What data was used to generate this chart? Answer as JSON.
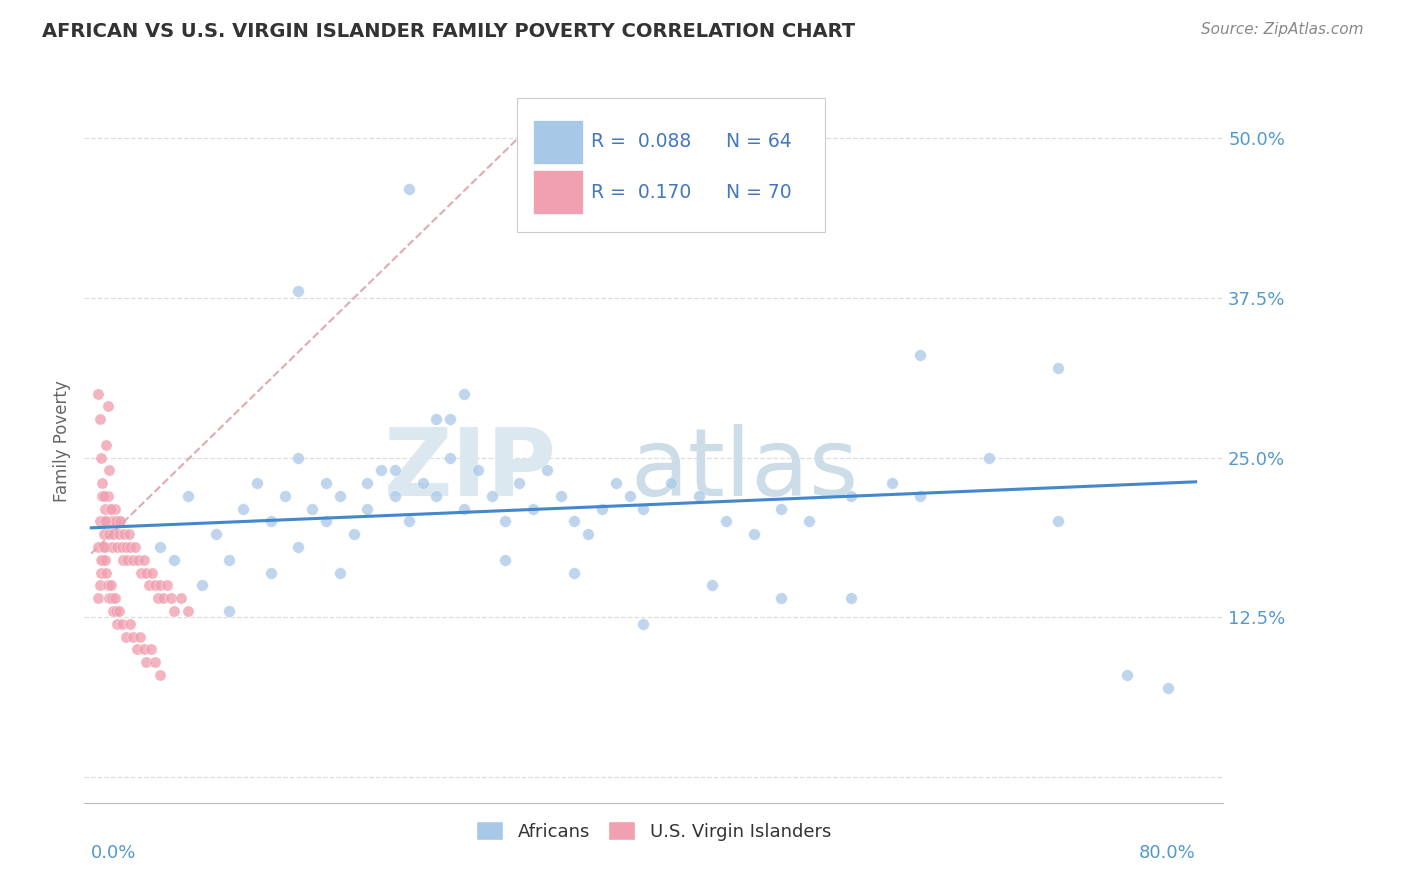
{
  "title": "AFRICAN VS U.S. VIRGIN ISLANDER FAMILY POVERTY CORRELATION CHART",
  "source": "Source: ZipAtlas.com",
  "ylabel": "Family Poverty",
  "yticks": [
    0.0,
    0.125,
    0.25,
    0.375,
    0.5
  ],
  "ytick_labels": [
    "",
    "12.5%",
    "25.0%",
    "37.5%",
    "50.0%"
  ],
  "xlim": [
    -0.005,
    0.82
  ],
  "ylim": [
    -0.02,
    0.545
  ],
  "color_blue": "#a8c8e8",
  "color_pink": "#f0a0b0",
  "color_trend_blue": "#4488cc",
  "color_trend_dashed": "#e8b0b8",
  "title_color": "#333333",
  "source_color": "#888888",
  "tick_color": "#5599cc",
  "axis_label_color": "#666666",
  "grid_color": "#dddddd",
  "legend_text_color": "#4477bb",
  "watermark_zip_color": "#d0dce8",
  "watermark_atlas_color": "#c8d8e0",
  "africans_x": [
    0.02,
    0.05,
    0.07,
    0.09,
    0.1,
    0.11,
    0.12,
    0.13,
    0.14,
    0.15,
    0.16,
    0.17,
    0.17,
    0.18,
    0.19,
    0.2,
    0.2,
    0.21,
    0.22,
    0.23,
    0.24,
    0.25,
    0.26,
    0.27,
    0.28,
    0.29,
    0.3,
    0.31,
    0.32,
    0.33,
    0.34,
    0.35,
    0.36,
    0.37,
    0.38,
    0.39,
    0.4,
    0.42,
    0.44,
    0.46,
    0.48,
    0.5,
    0.52,
    0.55,
    0.58,
    0.6,
    0.65,
    0.7,
    0.75,
    0.78,
    0.06,
    0.08,
    0.1,
    0.13,
    0.15,
    0.18,
    0.22,
    0.25,
    0.3,
    0.35,
    0.4,
    0.45,
    0.5,
    0.55
  ],
  "africans_y": [
    0.2,
    0.18,
    0.22,
    0.19,
    0.17,
    0.21,
    0.23,
    0.2,
    0.22,
    0.25,
    0.21,
    0.23,
    0.2,
    0.22,
    0.19,
    0.23,
    0.21,
    0.24,
    0.22,
    0.2,
    0.23,
    0.22,
    0.25,
    0.21,
    0.24,
    0.22,
    0.2,
    0.23,
    0.21,
    0.24,
    0.22,
    0.2,
    0.19,
    0.21,
    0.23,
    0.22,
    0.21,
    0.23,
    0.22,
    0.2,
    0.19,
    0.21,
    0.2,
    0.22,
    0.23,
    0.22,
    0.25,
    0.2,
    0.08,
    0.07,
    0.17,
    0.15,
    0.13,
    0.16,
    0.18,
    0.16,
    0.24,
    0.28,
    0.17,
    0.16,
    0.12,
    0.15,
    0.14,
    0.14
  ],
  "africans_y_outliers": [
    0.46,
    0.38,
    0.33,
    0.32,
    0.3,
    0.28
  ],
  "africans_x_outliers": [
    0.23,
    0.15,
    0.6,
    0.7,
    0.27,
    0.26
  ],
  "virgin_x": [
    0.005,
    0.006,
    0.007,
    0.008,
    0.009,
    0.01,
    0.01,
    0.011,
    0.012,
    0.013,
    0.014,
    0.015,
    0.015,
    0.016,
    0.017,
    0.018,
    0.019,
    0.02,
    0.021,
    0.022,
    0.023,
    0.024,
    0.025,
    0.026,
    0.027,
    0.028,
    0.03,
    0.032,
    0.034,
    0.036,
    0.038,
    0.04,
    0.042,
    0.044,
    0.046,
    0.048,
    0.05,
    0.052,
    0.055,
    0.058,
    0.06,
    0.065,
    0.07,
    0.005,
    0.006,
    0.007,
    0.008,
    0.009,
    0.01,
    0.011,
    0.012,
    0.013,
    0.014,
    0.015,
    0.016,
    0.017,
    0.018,
    0.019,
    0.02,
    0.022,
    0.025,
    0.028,
    0.03,
    0.033,
    0.035,
    0.038,
    0.04,
    0.043,
    0.046,
    0.05
  ],
  "virgin_y": [
    0.18,
    0.2,
    0.17,
    0.22,
    0.19,
    0.21,
    0.18,
    0.2,
    0.22,
    0.19,
    0.21,
    0.2,
    0.18,
    0.19,
    0.21,
    0.2,
    0.18,
    0.19,
    0.2,
    0.18,
    0.17,
    0.19,
    0.18,
    0.17,
    0.19,
    0.18,
    0.17,
    0.18,
    0.17,
    0.16,
    0.17,
    0.16,
    0.15,
    0.16,
    0.15,
    0.14,
    0.15,
    0.14,
    0.15,
    0.14,
    0.13,
    0.14,
    0.13,
    0.14,
    0.15,
    0.16,
    0.17,
    0.18,
    0.17,
    0.16,
    0.15,
    0.14,
    0.15,
    0.14,
    0.13,
    0.14,
    0.13,
    0.12,
    0.13,
    0.12,
    0.11,
    0.12,
    0.11,
    0.1,
    0.11,
    0.1,
    0.09,
    0.1,
    0.09,
    0.08
  ],
  "virgin_y_high": [
    0.3,
    0.28,
    0.25,
    0.23,
    0.22,
    0.2,
    0.26,
    0.29,
    0.24,
    0.21
  ],
  "virgin_x_high": [
    0.005,
    0.006,
    0.007,
    0.008,
    0.009,
    0.01,
    0.011,
    0.012,
    0.013,
    0.014
  ],
  "trend_blue_slope": 0.045,
  "trend_blue_intercept": 0.195,
  "trend_dashed_slope": 1.05,
  "trend_dashed_intercept": 0.175
}
